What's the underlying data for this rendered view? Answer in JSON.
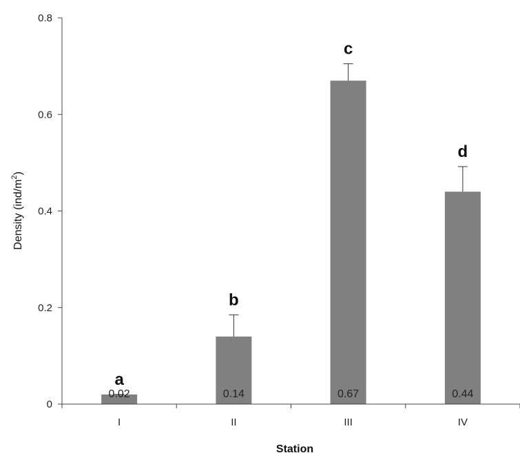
{
  "chart_data": {
    "type": "bar",
    "title": "",
    "xlabel": "Station",
    "ylabel_main": "Density (ind/m",
    "ylabel_sup": "2",
    "ylabel_close": ")",
    "categories": [
      "I",
      "II",
      "III",
      "IV"
    ],
    "values": [
      0.02,
      0.14,
      0.67,
      0.44
    ],
    "error_upper": [
      0.02,
      0.185,
      0.705,
      0.492
    ],
    "data_labels": [
      "0.02",
      "0.14",
      "0.67",
      "0.44"
    ],
    "significance_letters": [
      "a",
      "b",
      "c",
      "d"
    ],
    "ylim": [
      0,
      0.8
    ],
    "yticks": [
      0,
      0.2,
      0.4,
      0.6,
      0.8
    ],
    "ytick_labels": [
      "0",
      "0.2",
      "0.4",
      "0.6",
      "0.8"
    ],
    "grid": false,
    "bar_color": "#808080",
    "axis_color": "#444444"
  }
}
